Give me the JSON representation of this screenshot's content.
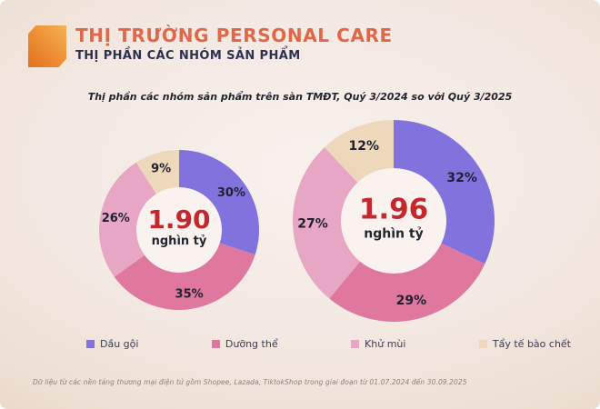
{
  "header": {
    "title": "THỊ TRƯỜNG PERSONAL CARE",
    "subtitle": "THỊ PHẦN CÁC NHÓM SẢN PHẨM",
    "accent_color": "#e0684a",
    "subtitle_color": "#2c3152"
  },
  "chart_data": {
    "type": "pie",
    "style": "donut",
    "title": "Thị phần các nhóm sản phẩm trên sàn TMĐT, Quý 3/2024 so với Quý 3/2025",
    "legend_position": "bottom",
    "legend": [
      {
        "label": "Dầu gội",
        "color": "#8172de"
      },
      {
        "label": "Dưỡng thể",
        "color": "#e0779f"
      },
      {
        "label": "Khử mùi",
        "color": "#e7a7c4"
      },
      {
        "label": "Tẩy tế bào chết",
        "color": "#eed8bc"
      }
    ],
    "donuts": [
      {
        "center_value": "1.90",
        "center_unit": "nghìn tỷ",
        "values": [
          30,
          35,
          26,
          9
        ]
      },
      {
        "center_value": "1.96",
        "center_unit": "nghìn tỷ",
        "values": [
          32,
          29,
          27,
          12
        ]
      }
    ],
    "value_suffix": "%",
    "label_color": "#1d2130",
    "center_value_color": "#c2282e",
    "hole_color": "#f9f2ef"
  },
  "footer": {
    "note": "Dữ liệu từ các nền tảng thương mại điện tử gồm Shopee, Lazada, TiktokShop trong giai đoạn từ 01.07.2024 đến 30.09.2025"
  }
}
